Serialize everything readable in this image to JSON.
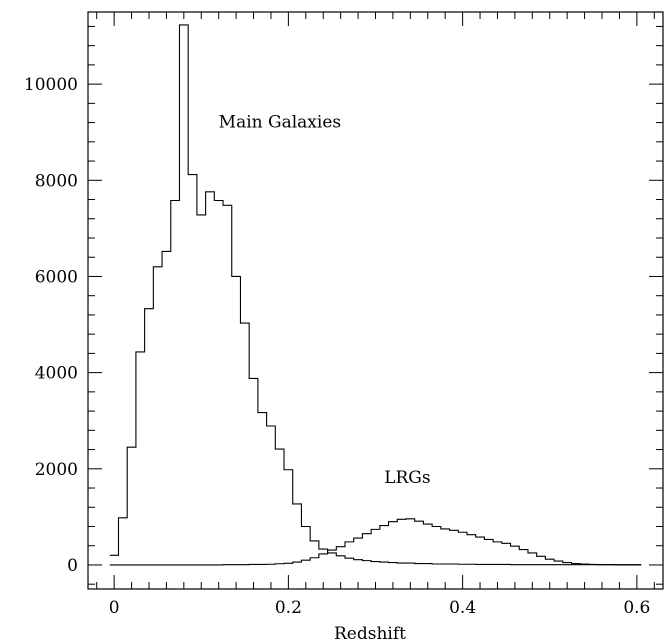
{
  "chart_data": {
    "type": "line",
    "title": "",
    "xlabel": "Redshift",
    "ylabel": "",
    "xlim": [
      -0.03,
      0.63
    ],
    "ylim": [
      -500,
      11500
    ],
    "x_ticks": [
      0,
      0.2,
      0.4,
      0.6
    ],
    "x_tick_labels": [
      "0",
      "0.2",
      "0.4",
      "0.6"
    ],
    "y_ticks": [
      0,
      2000,
      4000,
      6000,
      8000,
      10000
    ],
    "y_tick_labels": [
      "0",
      "2000",
      "4000",
      "6000",
      "8000",
      "10000"
    ],
    "grid": false,
    "bin_width": 0.01,
    "annotations": [
      {
        "text": "Main Galaxies",
        "x": 0.12,
        "y": 9100
      },
      {
        "text": "LRGs",
        "x": 0.31,
        "y": 1700
      }
    ],
    "series": [
      {
        "name": "Main Galaxies",
        "x_start": -0.005,
        "values": [
          200,
          980,
          2450,
          4430,
          5330,
          6200,
          6520,
          7580,
          11230,
          8120,
          7280,
          7760,
          7580,
          7480,
          6000,
          5030,
          3880,
          3170,
          2890,
          2410,
          1980,
          1270,
          800,
          500,
          330,
          250,
          190,
          140,
          110,
          90,
          70,
          60,
          50,
          40,
          40,
          30,
          30,
          20,
          20,
          20,
          15,
          15,
          10,
          10,
          10,
          10,
          5,
          5,
          5,
          5,
          5,
          5,
          5,
          5,
          5,
          5,
          5,
          5,
          5,
          5,
          5
        ]
      },
      {
        "name": "LRGs",
        "x_start": -0.005,
        "values": [
          0,
          0,
          0,
          0,
          0,
          0,
          0,
          0,
          0,
          0,
          0,
          0,
          0,
          5,
          5,
          5,
          10,
          10,
          15,
          25,
          35,
          60,
          100,
          150,
          230,
          310,
          380,
          480,
          560,
          650,
          740,
          820,
          900,
          950,
          960,
          910,
          850,
          800,
          750,
          720,
          680,
          630,
          580,
          530,
          480,
          450,
          390,
          320,
          250,
          180,
          120,
          80,
          50,
          30,
          20,
          10,
          5,
          5,
          0,
          0,
          0
        ]
      }
    ]
  }
}
